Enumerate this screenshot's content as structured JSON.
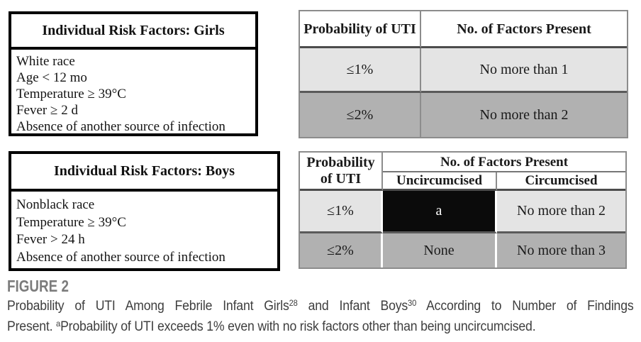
{
  "figure_label": "FIGURE 2",
  "girls_box": {
    "title": "Individual Risk Factors: Girls",
    "items": [
      "White race",
      "Age < 12 mo",
      "Temperature ≥ 39°C",
      "Fever ≥ 2 d",
      "Absence of another source of infection"
    ]
  },
  "girls_table": {
    "headers": {
      "probability": "Probability of UTI",
      "factors": "No. of Factors Present"
    },
    "rows": [
      {
        "probability": "≤1%",
        "factors": "No more than 1"
      },
      {
        "probability": "≤2%",
        "factors": "No more than 2"
      }
    ]
  },
  "boys_box": {
    "title": "Individual Risk Factors: Boys",
    "items": [
      "Nonblack race",
      "Temperature ≥ 39°C",
      "Fever > 24 h",
      "Absence of another source of infection"
    ]
  },
  "boys_table": {
    "headers": {
      "probability": "Probability of UTI",
      "factors_group": "No. of Factors Present",
      "uncircumcised": "Uncircumcised",
      "circumcised": "Circumcised"
    },
    "rows": [
      {
        "probability": "≤1%",
        "uncircumcised": "a",
        "circumcised": "No more than 2"
      },
      {
        "probability": "≤2%",
        "uncircumcised": "None",
        "circumcised": "No more than 3"
      }
    ]
  },
  "caption": {
    "l1_a": "Probability of UTI Among Febrile Infant Girls",
    "l1_sup1": "28",
    "l1_b": " and Infant Boys",
    "l1_sup2": "30",
    "l1_c": " According to Number of Findings",
    "l2_a": "Present. ",
    "l2_sup": "a",
    "l2_b": "Probability of UTI exceeds 1% even with no risk factors other than being uncircumcised."
  },
  "colors": {
    "row_light": "#e4e4e4",
    "row_dark": "#b1b1b1",
    "highlight_cell_bg": "#0b0b0b",
    "highlight_cell_text": "#ffffff",
    "figure_label_gray": "#7c7c7c"
  }
}
